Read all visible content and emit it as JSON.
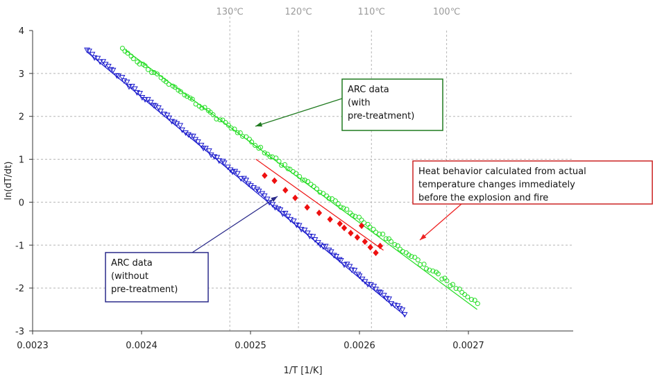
{
  "chart_data": {
    "type": "scatter",
    "xlabel": "1/T [1/K]",
    "ylabel": "ln(dT/dt)",
    "xlim": [
      0.0023,
      0.00275
    ],
    "ylim": [
      -3,
      4
    ],
    "x_ticks": [
      0.0023,
      0.0024,
      0.0025,
      0.0026,
      0.0027
    ],
    "x_tick_labels": [
      "0.0023",
      "0.0024",
      "0.0025",
      "0.0026",
      "0.0027"
    ],
    "y_ticks": [
      -3,
      -2,
      -1,
      0,
      1,
      2,
      3,
      4
    ],
    "y_tick_labels": [
      "-3",
      "-2",
      "-1",
      "0",
      "1",
      "2",
      "3",
      "4"
    ],
    "grid": "dashed horizontal and vertical",
    "top_axis": [
      {
        "label": "130℃",
        "x": 0.002481
      },
      {
        "label": "120℃",
        "x": 0.002544
      },
      {
        "label": "110℃",
        "x": 0.002611
      },
      {
        "label": "100℃",
        "x": 0.00268
      }
    ],
    "series": [
      {
        "color": "#1a1acc",
        "marker": "triangle-down",
        "x_range": [
          0.00235,
          0.002642
        ],
        "y_range": [
          3.55,
          -2.6
        ],
        "fit": {
          "x": [
            0.00235,
            0.002642
          ],
          "y": [
            3.5,
            -2.65
          ]
        }
      },
      {
        "color": "#22dd22",
        "marker": "circle",
        "x_range": [
          0.002382,
          0.002708
        ],
        "y_range": [
          3.55,
          -2.35
        ],
        "fit": {
          "x": [
            0.002385,
            0.002708
          ],
          "y": [
            3.55,
            -2.5
          ]
        }
      },
      {
        "color": "#ee1111",
        "marker": "diamond",
        "points": [
          [
            0.002513,
            0.62
          ],
          [
            0.002522,
            0.5
          ],
          [
            0.002532,
            0.28
          ],
          [
            0.002541,
            0.1
          ],
          [
            0.002552,
            -0.12
          ],
          [
            0.002563,
            -0.25
          ],
          [
            0.002573,
            -0.4
          ],
          [
            0.002582,
            -0.5
          ],
          [
            0.002592,
            -0.72
          ],
          [
            0.002598,
            -0.82
          ],
          [
            0.002605,
            -0.92
          ],
          [
            0.00261,
            -1.05
          ],
          [
            0.002615,
            -1.18
          ],
          [
            0.002619,
            -1.02
          ],
          [
            0.002602,
            -0.55
          ],
          [
            0.002586,
            -0.6
          ]
        ],
        "fit": {
          "x": [
            0.002505,
            0.002622
          ],
          "y": [
            1.0,
            -1.12
          ]
        }
      }
    ],
    "annotations": [
      {
        "id": "arc-with",
        "lines": [
          "ARC data",
          "(with",
          "pre-treatment)"
        ],
        "border": "#1f7a1f",
        "arrow": "#1f7a1f",
        "target": [
          0.002475,
          1.75
        ]
      },
      {
        "id": "arc-without",
        "lines": [
          "ARC data",
          "(without",
          "pre-treatment)"
        ],
        "border": "#2a2a8a",
        "arrow": "#2a2a8a",
        "target": [
          0.002493,
          0.15
        ]
      },
      {
        "id": "heat",
        "lines": [
          "Heat behavior calculated from actual",
          "temperature changes immediately",
          "before the explosion and fire"
        ],
        "border": "#cc2222",
        "arrow": "#ee2222",
        "target": [
          0.002613,
          -0.85
        ]
      }
    ]
  }
}
